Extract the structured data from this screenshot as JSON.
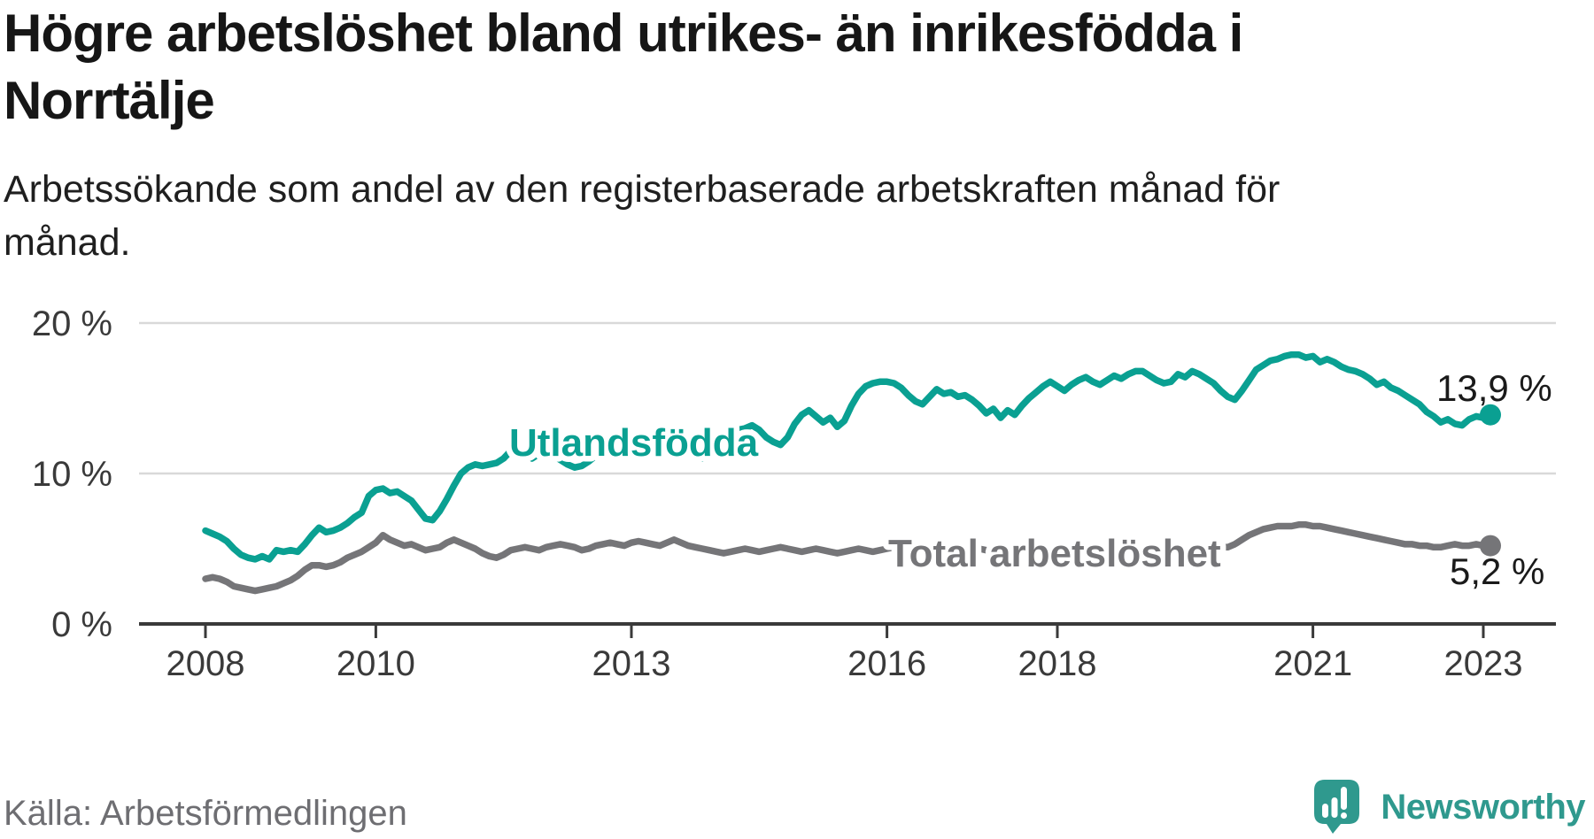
{
  "chart_data": {
    "type": "line",
    "title_lines": [
      "Högre arbetslöshet bland utrikes- än inrikesfödda i",
      "Norrtälje"
    ],
    "subtitle_lines": [
      "Arbetssökande som andel av den registerbaserade arbetskraften månad för",
      "månad."
    ],
    "grid_color": "#d9d9d9",
    "axis_color": "#3a3a3a",
    "x_axis": {
      "start": "2008-01",
      "end": "2023-02",
      "frequency": "monthly",
      "tick_years": [
        2008,
        2010,
        2013,
        2016,
        2018,
        2021,
        2023
      ]
    },
    "y_axis": {
      "ticks": [
        {
          "value": 0,
          "label": "0 %"
        },
        {
          "value": 10,
          "label": "10 %"
        },
        {
          "value": 20,
          "label": "20 %"
        }
      ],
      "range": [
        0,
        21.2
      ],
      "grid": true
    },
    "series": [
      {
        "name": "Utlandsfödda",
        "color": "#0aa092",
        "end_value_label": "13,9 %",
        "end_value": 13.9,
        "values": [
          6.2,
          6.0,
          5.8,
          5.5,
          5.0,
          4.6,
          4.4,
          4.3,
          4.5,
          4.3,
          4.9,
          4.8,
          4.9,
          4.8,
          5.3,
          5.9,
          6.4,
          6.1,
          6.2,
          6.4,
          6.7,
          7.1,
          7.4,
          8.5,
          8.9,
          9.0,
          8.7,
          8.8,
          8.5,
          8.2,
          7.6,
          7.0,
          6.9,
          7.5,
          8.3,
          9.2,
          10.0,
          10.4,
          10.6,
          10.5,
          10.6,
          10.7,
          11.0,
          11.5,
          11.6,
          11.4,
          11.0,
          11.3,
          11.6,
          11.2,
          10.9,
          10.6,
          10.4,
          10.5,
          10.8,
          11.2,
          11.6,
          11.8,
          11.9,
          12.1,
          12.2,
          12.4,
          12.3,
          12.4,
          12.2,
          12.3,
          12.5,
          12.4,
          12.2,
          11.6,
          11.0,
          11.6,
          12.2,
          12.6,
          12.8,
          12.9,
          13.0,
          13.2,
          12.9,
          12.4,
          12.1,
          11.9,
          12.4,
          13.3,
          13.9,
          14.2,
          13.8,
          13.4,
          13.7,
          13.1,
          13.5,
          14.5,
          15.3,
          15.8,
          16.0,
          16.1,
          16.1,
          16.0,
          15.7,
          15.2,
          14.8,
          14.6,
          15.1,
          15.6,
          15.3,
          15.4,
          15.1,
          15.2,
          14.9,
          14.5,
          14.0,
          14.3,
          13.7,
          14.2,
          13.9,
          14.5,
          15.0,
          15.4,
          15.8,
          16.1,
          15.8,
          15.5,
          15.9,
          16.2,
          16.4,
          16.1,
          15.9,
          16.2,
          16.5,
          16.3,
          16.6,
          16.8,
          16.8,
          16.5,
          16.2,
          16.0,
          16.1,
          16.6,
          16.4,
          16.8,
          16.6,
          16.3,
          16.0,
          15.5,
          15.1,
          14.9,
          15.5,
          16.2,
          16.9,
          17.2,
          17.5,
          17.6,
          17.8,
          17.9,
          17.9,
          17.7,
          17.8,
          17.4,
          17.6,
          17.4,
          17.1,
          16.9,
          16.8,
          16.6,
          16.3,
          15.9,
          16.1,
          15.7,
          15.5,
          15.2,
          14.9,
          14.6,
          14.1,
          13.8,
          13.4,
          13.6,
          13.3,
          13.2,
          13.6,
          13.8,
          13.7,
          13.9
        ]
      },
      {
        "name": "Total arbetslöshet",
        "color": "#757578",
        "end_value_label": "5,2 %",
        "end_value": 5.2,
        "values": [
          3.0,
          3.1,
          3.0,
          2.8,
          2.5,
          2.4,
          2.3,
          2.2,
          2.3,
          2.4,
          2.5,
          2.7,
          2.9,
          3.2,
          3.6,
          3.9,
          3.9,
          3.8,
          3.9,
          4.1,
          4.4,
          4.6,
          4.8,
          5.1,
          5.4,
          5.9,
          5.6,
          5.4,
          5.2,
          5.3,
          5.1,
          4.9,
          5.0,
          5.1,
          5.4,
          5.6,
          5.4,
          5.2,
          5.0,
          4.7,
          4.5,
          4.4,
          4.6,
          4.9,
          5.0,
          5.1,
          5.0,
          4.9,
          5.1,
          5.2,
          5.3,
          5.2,
          5.1,
          4.9,
          5.0,
          5.2,
          5.3,
          5.4,
          5.3,
          5.2,
          5.4,
          5.5,
          5.4,
          5.3,
          5.2,
          5.4,
          5.6,
          5.4,
          5.2,
          5.1,
          5.0,
          4.9,
          4.8,
          4.7,
          4.8,
          4.9,
          5.0,
          4.9,
          4.8,
          4.9,
          5.0,
          5.1,
          5.0,
          4.9,
          4.8,
          4.9,
          5.0,
          4.9,
          4.8,
          4.7,
          4.8,
          4.9,
          5.0,
          4.9,
          4.8,
          4.9,
          5.0,
          5.1,
          5.2,
          5.3,
          5.2,
          5.0,
          4.9,
          5.0,
          5.1,
          5.0,
          4.9,
          4.8,
          4.9,
          5.0,
          4.9,
          4.8,
          4.7,
          4.8,
          4.7,
          4.8,
          4.9,
          4.8,
          4.7,
          4.8,
          4.7,
          4.6,
          4.7,
          4.8,
          4.7,
          4.6,
          4.7,
          4.8,
          4.7,
          4.6,
          4.7,
          4.8,
          4.7,
          4.8,
          4.9,
          4.8,
          4.9,
          5.0,
          4.9,
          5.0,
          5.1,
          5.0,
          5.1,
          5.1,
          5.1,
          5.3,
          5.6,
          5.9,
          6.1,
          6.3,
          6.4,
          6.5,
          6.5,
          6.5,
          6.6,
          6.6,
          6.5,
          6.5,
          6.4,
          6.3,
          6.2,
          6.1,
          6.0,
          5.9,
          5.8,
          5.7,
          5.6,
          5.5,
          5.4,
          5.3,
          5.3,
          5.2,
          5.2,
          5.1,
          5.1,
          5.2,
          5.3,
          5.2,
          5.2,
          5.3,
          5.2,
          5.2
        ]
      }
    ]
  },
  "footer": {
    "source": "Källa: Arbetsförmedlingen",
    "brand": "Newsworthy",
    "brand_color": "#2f998e"
  }
}
